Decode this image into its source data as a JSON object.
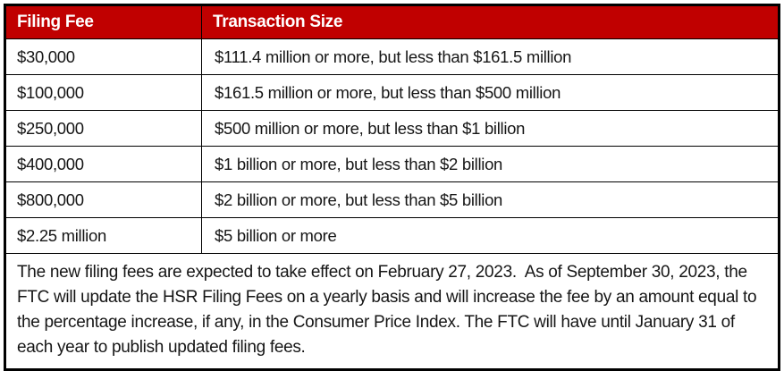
{
  "colors": {
    "header_bg": "#C00000",
    "header_text": "#FFFFFF",
    "border": "#000000",
    "body_text": "#161616"
  },
  "table": {
    "header": {
      "filing_fee": "Filing Fee",
      "transaction_size": "Transaction Size"
    },
    "rows": [
      {
        "fee": "$30,000",
        "size": "$111.4 million or more, but less than $161.5 million"
      },
      {
        "fee": "$100,000",
        "size": "$161.5 million or more, but less than $500 million"
      },
      {
        "fee": "$250,000",
        "size": "$500 million or more, but less than $1 billion"
      },
      {
        "fee": "$400,000",
        "size": "$1 billion or more, but less than $2 billion"
      },
      {
        "fee": "$800,000",
        "size": "$2 billion or more, but less than $5 billion"
      },
      {
        "fee": "$2.25 million",
        "size": "$5 billion or more"
      }
    ],
    "footnote": "The new filing fees are expected to take effect on February 27, 2023.  As of September 30, 2023, the FTC will update the HSR Filing Fees on a yearly basis and will increase the fee by an amount equal to the percentage increase, if any, in the Consumer Price Index. The FTC will have until January 31 of each year to publish updated filing fees."
  }
}
